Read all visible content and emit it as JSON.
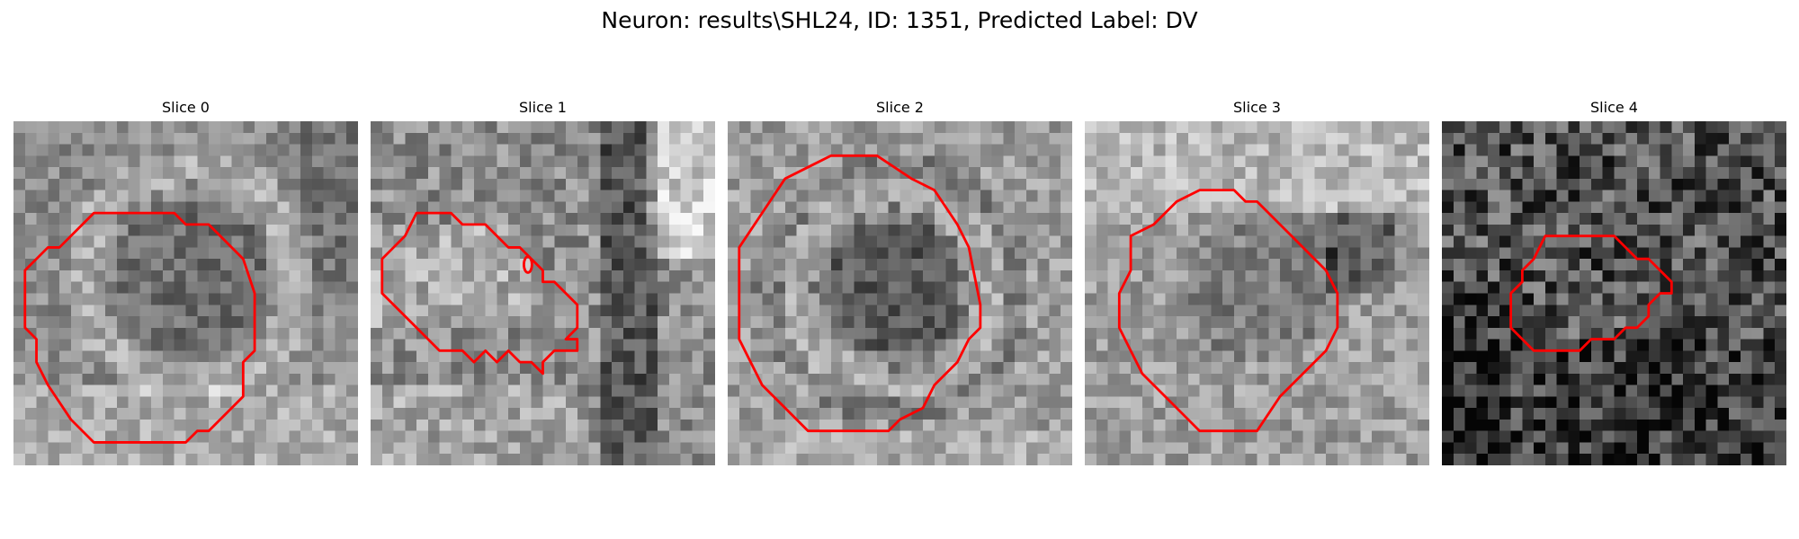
{
  "figure": {
    "title": "Neuron: results\\SHL24, ID: 1351, Predicted Label: DV"
  },
  "contour_color": "#ff0000",
  "slices": [
    {
      "title": "Slice 0"
    },
    {
      "title": "Slice 1"
    },
    {
      "title": "Slice 2"
    },
    {
      "title": "Slice 3"
    },
    {
      "title": "Slice 4"
    }
  ]
}
